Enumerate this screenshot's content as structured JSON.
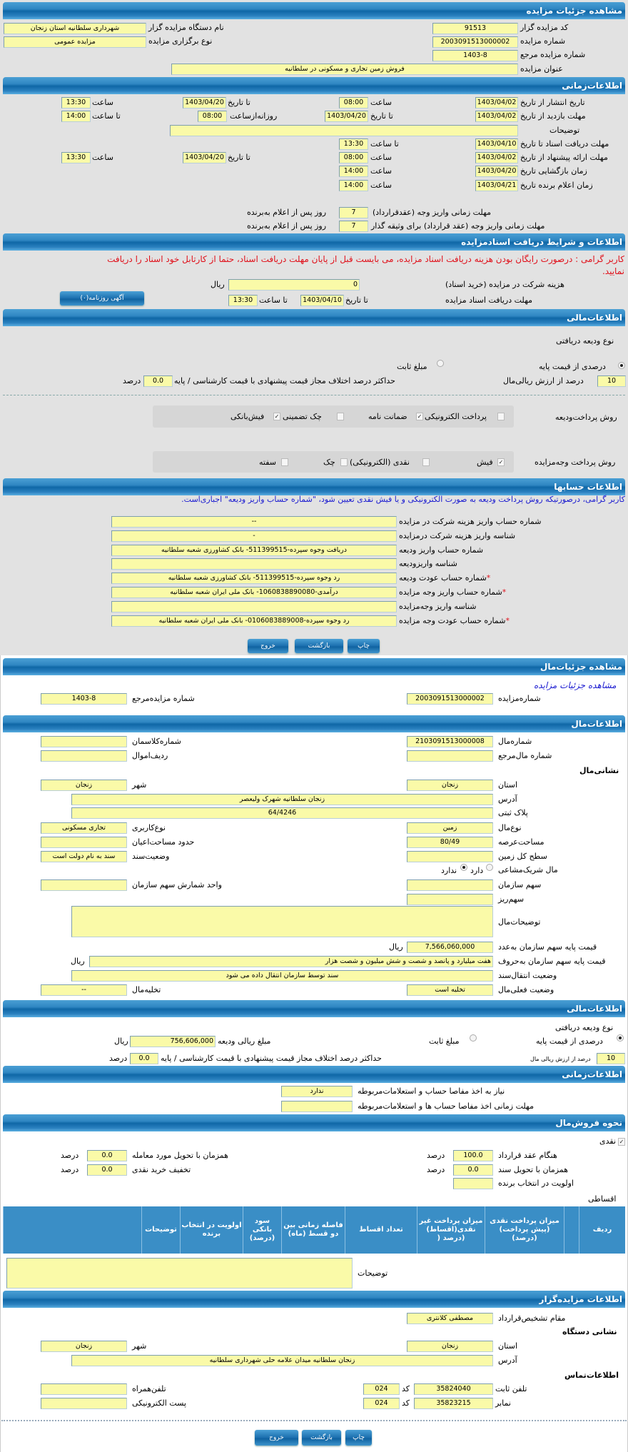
{
  "colors": {
    "header": "#1a6fae",
    "input": "#fafaa8",
    "warning": "#e0101a",
    "info": "#1a1ad0",
    "panel": "#e2e2e2"
  },
  "auction": {
    "title": "مشاهده جزئیات مزایده",
    "code_label": "کد مزایده گزار",
    "code": "91513",
    "org_label": "نام دستگاه مزایده گزار",
    "org": "شهرداری سلطانیه استان زنجان",
    "number_label": "شماره مزایده",
    "number": "2003091513000002",
    "type_label": "نوع برگزاری مزایده",
    "type": "مزایده عمومی",
    "ref_label": "شماره مزایده مرجع",
    "ref": "1403-8",
    "name_label": "عنوان مزایده",
    "name": "فروش زمین تجاری و مسکونی در سلطانیه"
  },
  "time": {
    "title": "اطلاعات‌زمانی",
    "time": "ساعت",
    "to_date": "تا تاریخ",
    "to_time": "تا ساعت",
    "publish_label": "تاریخ انتشار از تاریخ",
    "publish_from": "1403/04/02",
    "publish_from_time": "08:00",
    "publish_to": "1403/04/20",
    "publish_to_time": "13:30",
    "visit_label": "مهلت بازدید از تاریخ",
    "visit_from": "1403/04/02",
    "visit_to": "1403/04/20",
    "daily_from_label": "روزانه‌ازساعت",
    "daily_from": "08:00",
    "daily_to": "14:00",
    "desc_label": "توضیحات",
    "desc": "",
    "docs_label": "مهلت دریافت اسناد تا تاریخ",
    "docs_date": "1403/04/10",
    "docs_time": "13:30",
    "offer_label": "مهلت ارائه پیشنهاد از تاریخ",
    "offer_from": "1403/04/02",
    "offer_from_time": "08:00",
    "offer_to": "1403/04/20",
    "offer_to_time": "13:30",
    "opening_label": "زمان بازگشایی   تاریخ",
    "opening_date": "1403/04/20",
    "opening_time": "14:00",
    "winner_label": "زمان اعلام برنده   تاریخ",
    "winner_date": "1403/04/21",
    "winner_time": "14:00",
    "pay_contract_label": "مهلت زمانی واریز وجه (عقدقرارداد)",
    "pay_contract": "7",
    "days_after": "روز پس از اعلام به‌برنده",
    "pay_bail_label": "مهلت زمانی واریز وجه (عقد قرارداد) برای وثیقه گذار",
    "pay_bail": "7"
  },
  "docs": {
    "title": "اطلاعات و شرایط دریافت اسناد‌مزایده",
    "warning": "کاربر گرامی : درصورت رایگان بودن هزینه دریافت اسناد مزایده، می بایست قبل از پایان مهلت دریافت اسناد، حتما از کارتابل خود اسناد را دریافت نمایید.",
    "fee_label": "هزینه شرکت در مزایده (خرید اسناد)",
    "fee": "0",
    "rial": "ریال",
    "deadline_label": "مهلت دریافت اسناد مزایده",
    "to_date": "تا تاریخ",
    "date": "1403/04/10",
    "to_time": "تا ساعت",
    "time": "13:30",
    "newspaper_button": "آگهی روزنامه(۰)"
  },
  "finance": {
    "title": "اطلاعات‌مالی",
    "deposit_type_label": "نوع ودیعه دریافتی",
    "percent_option": "درصدی از قیمت پایه",
    "fixed_option": "مبلغ ثابت",
    "selected": "percent",
    "percent": "10",
    "percent_suffix": "درصد از ارزش ریالی‌مال",
    "max_diff_label": "حداکثر درصد اختلاف مجاز قیمت پیشنهادی با قیمت کارشناسی / پایه",
    "max_diff": "0.0",
    "percent_unit": "درصد",
    "deposit_methods_label": "روش پرداخت‌ودیعه",
    "deposit_methods": [
      {
        "label": "پرداخت الکترونیکی",
        "checked": false
      },
      {
        "label": "ضمانت نامه",
        "checked": true
      },
      {
        "label": "چک تضمینی",
        "checked": false
      },
      {
        "label": "فیش‌بانکی",
        "checked": true
      }
    ],
    "payment_methods_label": "روش پرداخت وجه‌مزایده",
    "payment_methods": [
      {
        "label": "فیش",
        "checked": true
      },
      {
        "label": "نقدی (الکترونیکی)",
        "checked": false
      },
      {
        "label": "چک",
        "checked": false
      },
      {
        "label": "سفته",
        "checked": false
      }
    ]
  },
  "accounts": {
    "title": "اطلاعات حسابها",
    "notice": "کاربر گرامی، درصورتیکه روش پرداخت ودیعه به صورت الکترونیکی و یا فیش نقدی تعیین شود، \"شماره حساب واریز ودیعه\" اجباری‌است.",
    "rows": [
      {
        "label": "شماره حساب واریز هزینه شرکت در مزایده",
        "value": "--",
        "required": false
      },
      {
        "label": "شناسه واریز هزینه شرکت درمزایده",
        "value": "-",
        "required": false
      },
      {
        "label": "شماره حساب واریز ودیعه",
        "value": "دریافت وجوه سپرده-511399515- بانک کشاورزی شعبه سلطانیه",
        "required": false
      },
      {
        "label": "شناسه واریزودیعه",
        "value": "",
        "required": false
      },
      {
        "label": "شماره حساب عودت ودیعه",
        "value": "رد وجوه سپرده-511399515- بانک کشاورزی شعبه سلطانیه",
        "required": true
      },
      {
        "label": "شماره حساب واریز وجه مزایده",
        "value": "درآمدی-1060838890080- بانک ملی ایران شعبه سلطانیه",
        "required": true
      },
      {
        "label": "شناسه واریز وجه‌مزایده",
        "value": "",
        "required": false
      },
      {
        "label": "شماره حساب عودت وجه مزایده",
        "value": "رد وجوه سپرده-0106083889008- بانک ملی ایران شعبه سلطانیه",
        "required": true
      }
    ],
    "required_mark": "*"
  },
  "buttons": {
    "print": "چاپ",
    "back": "بازگشت",
    "exit": "خروج"
  },
  "item": {
    "title": "مشاهده جزئیات‌مال",
    "link": "مشاهده جزئیات مزایده",
    "auction_no_label": "شماره‌مزایده",
    "auction_no": "2003091513000002",
    "ref_label": "شماره مزایده‌مرجع",
    "ref": "1403-8",
    "info_title": "اطلاعات‌مال",
    "item_no_label": "شماره‌مال",
    "item_no": "2103091513000008",
    "class_label": "شماره‌کلاسمان",
    "class_no": "",
    "item_ref_label": "شماره مال‌مرجع",
    "item_ref": "",
    "row_label": "ردیف‌اموال",
    "row": "",
    "address_title": "نشانی‌مال",
    "province_label": "استان",
    "province": "زنجان",
    "city_label": "شهر",
    "city": "زنجان",
    "address_label": "آدرس",
    "address": "زنجان سلطانیه شهرک ولیعصر",
    "plate_label": "پلاک ثبتی",
    "plate": "64/4246",
    "kind_label": "نوع‌مال",
    "kind": "زمین",
    "usage_label": "نوع‌کاربری",
    "usage": "تجاری مسکونی",
    "land_area_label": "مساحت‌عرصه",
    "land_area": "80/49",
    "building_area_label": "حدود مساحت‌اعیان",
    "building_area": "",
    "total_area_label": "سطح کل زمین",
    "total_area": "",
    "deed_label": "وضعیت‌سند",
    "deed": "سند به نام دولت است",
    "shared_label": "مال شریک‌مشاعی",
    "shared_yes": "دارد",
    "shared_no": "ندارد",
    "shared": "no",
    "org_share_label": "سهم سازمان",
    "org_share": "",
    "share_unit_label": "واحد شمارش سهم سازمان",
    "share_unit": "",
    "sub_share_label": "سهم‌ریز",
    "sub_share": "",
    "desc_label": "توضیحات‌مال",
    "desc": "",
    "price_num_label": "قیمت پایه سهم سازمان به‌عدد",
    "price_num": "7,566,060,000",
    "price_text_label": "قیمت پایه سهم سازمان به‌حروف",
    "price_text": "هفت میلیارد و پانصد و شصت و شش میلیون و شصت هزار",
    "rial": "ریال",
    "transfer_label": "وضعیت انتقال‌سند",
    "transfer": "سند توسط سازمان انتقال داده می شود",
    "status_label": "وضعیت فعلی‌مال",
    "status": "تخلیه است",
    "evac_label": "تخلیه‌مال",
    "evac": "--"
  },
  "item_finance": {
    "title": "اطلاعات‌مالی",
    "deposit_type_label": "نوع ودیعه دریافتی",
    "percent_option": "درصدی از قیمت پایه",
    "fixed_option": "مبلغ ثابت",
    "selected": "percent",
    "deposit_amount_label": "مبلغ ریالی ودیعه",
    "deposit_amount": "756,606,000",
    "rial": "ریال",
    "percent": "10",
    "percent_suffix": "درصد از ارزش ریالی مال",
    "max_diff_label": "حداکثر درصد اختلاف مجاز قیمت پیشنهادی با قیمت کارشناسی / پایه",
    "max_diff": "0.0",
    "percent_unit": "درصد"
  },
  "item_time": {
    "title": "اطلاعات‌زمانی",
    "clearance_label": "نیاز به اخذ مفاصا حساب و استعلامات‌مربوطه",
    "clearance": "ندارد",
    "clearance_deadline_label": "مهلت زمانی اخذ مفاصا حساب ها و استعلامات‌مربوطه",
    "clearance_deadline": ""
  },
  "sale": {
    "title": "نحوه فروش‌مال",
    "cash_label": "نقدی",
    "cash_checked": true,
    "contract_label": "هنگام عقد قرارداد",
    "contract": "100.0",
    "delivery_item_label": "همزمان با تحویل مورد معامله",
    "delivery_item": "0.0",
    "deed_label": "همزمان با تحویل سند",
    "deed": "0.0",
    "discount_label": "تخفیف خرید نقدی",
    "discount": "0.0",
    "priority_label": "اولویت در انتخاب برنده",
    "priority": "",
    "percent_unit": "درصد",
    "installments_label": "اقساطی",
    "columns": [
      "ردیف",
      "",
      "میزان پرداخت نقدی (پیش پرداخت) (درصد)",
      "میزان پرداخت غیر نقدی(اقساط) (درصد (",
      "تعداد اقساط",
      "فاصله زمانی بین دو قسط (ماه)",
      "سود بانکی (درصد)",
      "اولویت در انتخاب برنده",
      "توضیحات",
      ""
    ],
    "desc_label": "توضیحات",
    "desc": ""
  },
  "auctioneer": {
    "title": "اطلاعات مزایده‌گزار",
    "authority_label": "مقام تشخیص‌قرارداد",
    "authority": "مصطفی کلانتری",
    "address_title": "نشانی دستگاه",
    "province_label": "استان",
    "province": "زنجان",
    "city_label": "شهر",
    "city": "زنجان",
    "address_label": "آدرس",
    "address": "زنجان سلطانیه میدان علامه حلی شهرداری سلطانیه",
    "contact_title": "اطلاعات‌تماس",
    "phone_label": "تلفن ثابت",
    "phone": "35824040",
    "code_label": "کد",
    "phone_code": "024",
    "mobile_label": "تلفن‌همراه",
    "mobile": "",
    "fax_label": "نمابر",
    "fax": "35823215",
    "fax_code": "024",
    "email_label": "پست الکترونیکی",
    "email": ""
  }
}
